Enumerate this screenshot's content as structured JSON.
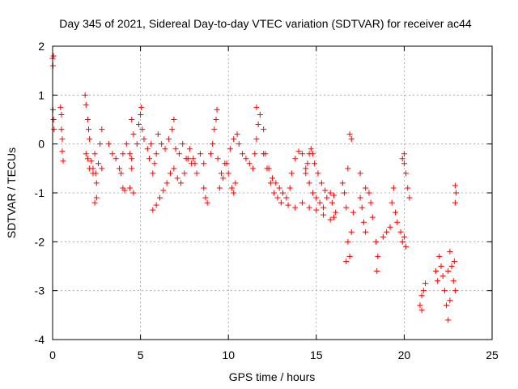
{
  "chart_data": {
    "type": "scatter",
    "title": "Day 345 of 2021, Sidereal Day-to-day VTEC variation (SDTVAR) for receiver ac44",
    "xlabel": "GPS time / hours",
    "ylabel": "SDTVAR / TECUs",
    "xlim": [
      0,
      25
    ],
    "ylim": [
      -4,
      2
    ],
    "xticks": [
      0,
      5,
      10,
      15,
      20,
      25
    ],
    "yticks": [
      -4,
      -3,
      -2,
      -1,
      0,
      1,
      2
    ],
    "grid": true,
    "marker": "plus",
    "color": "#ff0000",
    "series": [
      {
        "name": "SDTVAR",
        "points": [
          [
            0.0,
            1.75
          ],
          [
            0.02,
            1.6
          ],
          [
            0.05,
            1.8
          ],
          [
            0.02,
            0.7
          ],
          [
            0.05,
            0.5
          ],
          [
            0.08,
            0.3
          ],
          [
            0.45,
            0.75
          ],
          [
            0.5,
            0.6
          ],
          [
            0.5,
            0.3
          ],
          [
            0.55,
            0.1
          ],
          [
            0.55,
            -0.15
          ],
          [
            0.6,
            -0.35
          ],
          [
            1.85,
            1.0
          ],
          [
            1.9,
            0.8
          ],
          [
            2.0,
            0.5
          ],
          [
            2.05,
            0.3
          ],
          [
            2.1,
            0.1
          ],
          [
            1.9,
            -0.2
          ],
          [
            2.0,
            -0.3
          ],
          [
            2.1,
            -0.5
          ],
          [
            2.2,
            -0.35
          ],
          [
            2.3,
            -0.5
          ],
          [
            2.4,
            -0.2
          ],
          [
            2.45,
            -0.6
          ],
          [
            2.5,
            -0.8
          ],
          [
            2.5,
            -1.1
          ],
          [
            2.4,
            -1.2
          ],
          [
            2.3,
            -0.6
          ],
          [
            2.6,
            -0.4
          ],
          [
            2.7,
            0.0
          ],
          [
            2.8,
            0.3
          ],
          [
            2.8,
            -0.5
          ],
          [
            3.2,
            0.0
          ],
          [
            3.4,
            -0.2
          ],
          [
            3.6,
            -0.3
          ],
          [
            3.8,
            -0.5
          ],
          [
            3.9,
            -0.6
          ],
          [
            4.0,
            -0.9
          ],
          [
            4.1,
            -0.95
          ],
          [
            4.0,
            -0.2
          ],
          [
            4.2,
            0.0
          ],
          [
            4.4,
            -0.2
          ],
          [
            4.5,
            -0.5
          ],
          [
            4.4,
            -0.9
          ],
          [
            4.6,
            -1.0
          ],
          [
            4.5,
            -0.3
          ],
          [
            4.5,
            0.5
          ],
          [
            4.6,
            0.2
          ],
          [
            4.8,
            0.0
          ],
          [
            4.9,
            0.4
          ],
          [
            5.0,
            0.6
          ],
          [
            5.05,
            0.75
          ],
          [
            5.1,
            0.3
          ],
          [
            5.2,
            0.1
          ],
          [
            5.4,
            -0.1
          ],
          [
            5.5,
            -0.3
          ],
          [
            5.6,
            0.0
          ],
          [
            5.7,
            -0.6
          ],
          [
            5.8,
            -0.4
          ],
          [
            5.9,
            -0.2
          ],
          [
            5.7,
            -1.35
          ],
          [
            5.9,
            -1.25
          ],
          [
            6.1,
            -1.1
          ],
          [
            6.3,
            -0.95
          ],
          [
            6.5,
            -0.8
          ],
          [
            6.7,
            -0.6
          ],
          [
            6.9,
            -0.5
          ],
          [
            7.1,
            -0.7
          ],
          [
            7.3,
            -0.8
          ],
          [
            7.5,
            -0.6
          ],
          [
            7.7,
            -0.3
          ],
          [
            7.9,
            -0.4
          ],
          [
            6.0,
            0.2
          ],
          [
            6.2,
            0.0
          ],
          [
            6.4,
            -0.1
          ],
          [
            6.6,
            0.1
          ],
          [
            6.8,
            0.3
          ],
          [
            6.9,
            0.5
          ],
          [
            7.0,
            -0.1
          ],
          [
            7.2,
            -0.2
          ],
          [
            7.4,
            0.0
          ],
          [
            7.6,
            -0.3
          ],
          [
            7.8,
            -0.1
          ],
          [
            8.0,
            -0.3
          ],
          [
            8.1,
            -0.4
          ],
          [
            8.2,
            -0.6
          ],
          [
            8.4,
            -0.2
          ],
          [
            8.6,
            -0.4
          ],
          [
            8.6,
            -0.9
          ],
          [
            8.7,
            -1.1
          ],
          [
            8.8,
            -1.2
          ],
          [
            9.0,
            -0.2
          ],
          [
            9.1,
            0.0
          ],
          [
            9.2,
            0.3
          ],
          [
            9.3,
            0.5
          ],
          [
            9.35,
            0.7
          ],
          [
            9.4,
            -0.3
          ],
          [
            9.6,
            -0.6
          ],
          [
            9.8,
            -0.4
          ],
          [
            10.0,
            -0.6
          ],
          [
            10.2,
            -0.9
          ],
          [
            10.3,
            -1.0
          ],
          [
            10.4,
            -0.8
          ],
          [
            9.5,
            -0.9
          ],
          [
            9.7,
            -0.7
          ],
          [
            9.9,
            -0.4
          ],
          [
            10.1,
            -0.1
          ],
          [
            10.3,
            0.1
          ],
          [
            10.5,
            0.2
          ],
          [
            10.6,
            0.0
          ],
          [
            10.8,
            -0.2
          ],
          [
            11.0,
            -0.3
          ],
          [
            11.2,
            -0.4
          ],
          [
            11.4,
            -0.5
          ],
          [
            11.5,
            -0.2
          ],
          [
            11.6,
            0.1
          ],
          [
            11.7,
            0.4
          ],
          [
            11.8,
            0.6
          ],
          [
            11.6,
            0.75
          ],
          [
            12.0,
            0.3
          ],
          [
            12.1,
            -0.2
          ],
          [
            12.3,
            -0.5
          ],
          [
            12.5,
            -0.7
          ],
          [
            12.7,
            -0.8
          ],
          [
            12.9,
            -0.9
          ],
          [
            13.1,
            -1.0
          ],
          [
            13.3,
            -1.1
          ],
          [
            13.5,
            -0.9
          ],
          [
            13.6,
            -0.6
          ],
          [
            13.8,
            -0.3
          ],
          [
            14.0,
            -0.15
          ],
          [
            14.2,
            -0.2
          ],
          [
            14.4,
            -0.5
          ],
          [
            14.6,
            -0.8
          ],
          [
            14.8,
            -1.0
          ],
          [
            15.0,
            -1.1
          ],
          [
            15.2,
            -1.2
          ],
          [
            15.4,
            -1.3
          ],
          [
            12.0,
            -0.2
          ],
          [
            12.2,
            -0.5
          ],
          [
            12.4,
            -0.8
          ],
          [
            12.6,
            -1.0
          ],
          [
            12.8,
            -1.1
          ],
          [
            13.0,
            -1.2
          ],
          [
            13.4,
            -1.25
          ],
          [
            13.8,
            -1.3
          ],
          [
            14.2,
            -1.2
          ],
          [
            14.6,
            -1.3
          ],
          [
            15.0,
            -1.35
          ],
          [
            15.4,
            -1.45
          ],
          [
            15.8,
            -1.55
          ],
          [
            16.0,
            -1.5
          ],
          [
            16.1,
            -1.4
          ],
          [
            15.9,
            -1.2
          ],
          [
            15.6,
            -1.1
          ],
          [
            14.4,
            -0.6
          ],
          [
            14.5,
            -0.4
          ],
          [
            14.6,
            -0.2
          ],
          [
            14.7,
            -0.1
          ],
          [
            14.8,
            -0.2
          ],
          [
            14.9,
            -0.4
          ],
          [
            15.1,
            -0.6
          ],
          [
            15.3,
            -0.8
          ],
          [
            15.5,
            -0.95
          ],
          [
            15.8,
            -1.0
          ],
          [
            16.0,
            -1.05
          ],
          [
            16.5,
            -0.8
          ],
          [
            16.6,
            -1.0
          ],
          [
            16.7,
            -1.3
          ],
          [
            16.8,
            -0.5
          ],
          [
            16.9,
            0.2
          ],
          [
            17.0,
            0.1
          ],
          [
            16.8,
            -2.0
          ],
          [
            16.9,
            -2.3
          ],
          [
            16.7,
            -2.4
          ],
          [
            17.0,
            -1.8
          ],
          [
            17.1,
            -1.4
          ],
          [
            17.5,
            -1.1
          ],
          [
            17.6,
            -1.3
          ],
          [
            17.7,
            -1.6
          ],
          [
            17.8,
            -1.8
          ],
          [
            17.5,
            -0.6
          ],
          [
            17.8,
            -0.9
          ],
          [
            18.0,
            -1.0
          ],
          [
            18.1,
            -1.2
          ],
          [
            18.2,
            -1.5
          ],
          [
            18.4,
            -2.0
          ],
          [
            18.5,
            -2.3
          ],
          [
            18.45,
            -2.6
          ],
          [
            18.8,
            -1.9
          ],
          [
            19.0,
            -1.8
          ],
          [
            19.2,
            -1.7
          ],
          [
            19.3,
            -1.2
          ],
          [
            19.4,
            -0.9
          ],
          [
            19.5,
            -1.4
          ],
          [
            19.6,
            -1.6
          ],
          [
            19.8,
            -1.8
          ],
          [
            19.9,
            -2.0
          ],
          [
            20.0,
            -1.9
          ],
          [
            20.1,
            -2.1
          ],
          [
            19.9,
            -0.3
          ],
          [
            20.0,
            -0.4
          ],
          [
            20.1,
            -0.6
          ],
          [
            20.2,
            -0.9
          ],
          [
            20.3,
            -1.1
          ],
          [
            20.0,
            -0.2
          ],
          [
            20.9,
            -3.3
          ],
          [
            21.0,
            -3.1
          ],
          [
            21.1,
            -3.0
          ],
          [
            21.2,
            -2.85
          ],
          [
            21.0,
            -3.4
          ],
          [
            21.8,
            -2.6
          ],
          [
            21.9,
            -2.8
          ],
          [
            22.0,
            -2.3
          ],
          [
            22.1,
            -2.5
          ],
          [
            22.2,
            -2.7
          ],
          [
            22.3,
            -3.0
          ],
          [
            22.4,
            -3.3
          ],
          [
            22.5,
            -3.6
          ],
          [
            22.6,
            -3.2
          ],
          [
            22.7,
            -2.5
          ],
          [
            22.6,
            -2.2
          ],
          [
            22.5,
            -2.6
          ],
          [
            22.8,
            -2.8
          ],
          [
            22.9,
            -3.0
          ],
          [
            22.85,
            -2.4
          ],
          [
            22.9,
            -1.2
          ],
          [
            22.95,
            -1.0
          ],
          [
            22.9,
            -0.85
          ]
        ]
      }
    ]
  }
}
